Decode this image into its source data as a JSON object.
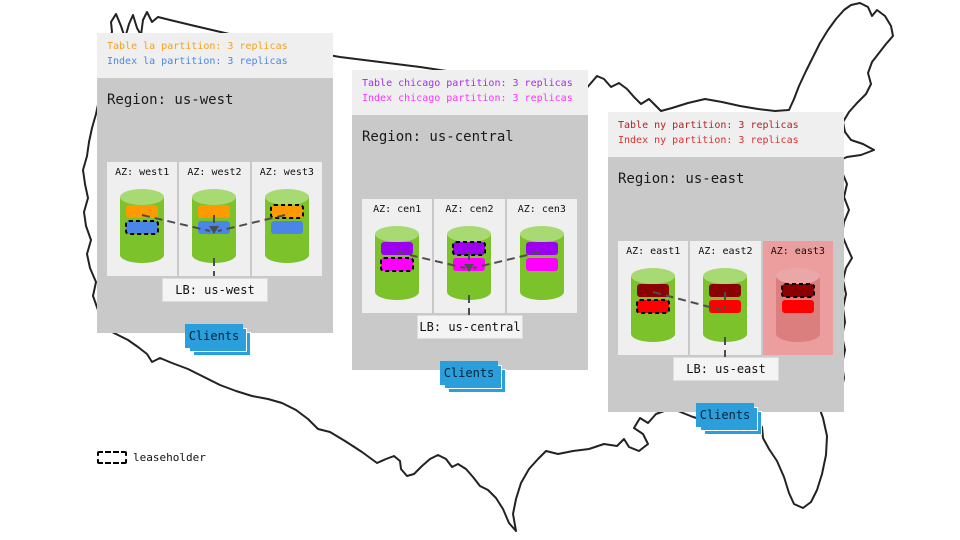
{
  "diagram": {
    "legend": {
      "label": "leaseholder"
    },
    "colors": {
      "cylinder_body": "#7CC22A",
      "cylinder_top": "#A8DA74",
      "cylinder_failed_body": "#DB7E7E",
      "cylinder_failed_top": "#E9A7A7",
      "failed_az_bg": "#EC9D9D",
      "region_bg": "#C9C9C9",
      "panel_bg": "#EFEFEF",
      "clients_blue": "#2B9FDB",
      "connection_line": "#4D4D4D"
    },
    "regions": [
      {
        "name": "us-west",
        "title": "Region: us-west",
        "annotation_line1": "Table la partition: 3 replicas",
        "annotation_color1": "#F5A01E",
        "annotation_line2": "Index la partition: 3 replicas",
        "annotation_color2": "#4A86E8",
        "lb_label": "LB: us-west",
        "clients_label": "Clients",
        "azs": [
          {
            "label": "AZ: west1",
            "failed": false,
            "connected": true,
            "bars": [
              {
                "color": "#FF9900",
                "leaseholder": false
              },
              {
                "color": "#4A86E8",
                "leaseholder": true
              }
            ]
          },
          {
            "label": "AZ: west2",
            "failed": false,
            "connected": true,
            "bars": [
              {
                "color": "#FF9900",
                "leaseholder": false
              },
              {
                "color": "#4A86E8",
                "leaseholder": false
              }
            ]
          },
          {
            "label": "AZ: west3",
            "failed": false,
            "connected": true,
            "bars": [
              {
                "color": "#FF9900",
                "leaseholder": true
              },
              {
                "color": "#4A86E8",
                "leaseholder": false
              }
            ]
          }
        ]
      },
      {
        "name": "us-central",
        "title": "Region: us-central",
        "annotation_line1": "Table chicago partition: 3 replicas",
        "annotation_color1": "#A42CF0",
        "annotation_line2": "Index chicago partition: 3 replicas",
        "annotation_color2": "#FF33FF",
        "lb_label": "LB: us-central",
        "clients_label": "Clients",
        "azs": [
          {
            "label": "AZ: cen1",
            "failed": false,
            "connected": true,
            "bars": [
              {
                "color": "#9D00EE",
                "leaseholder": false
              },
              {
                "color": "#FF00FF",
                "leaseholder": true
              }
            ]
          },
          {
            "label": "AZ: cen2",
            "failed": false,
            "connected": true,
            "bars": [
              {
                "color": "#9D00EE",
                "leaseholder": true
              },
              {
                "color": "#FF00FF",
                "leaseholder": false
              }
            ]
          },
          {
            "label": "AZ: cen3",
            "failed": false,
            "connected": true,
            "bars": [
              {
                "color": "#9D00EE",
                "leaseholder": false
              },
              {
                "color": "#FF00FF",
                "leaseholder": false
              }
            ]
          }
        ]
      },
      {
        "name": "us-east",
        "title": "Region: us-east",
        "annotation_line1": "Table ny partition: 3 replicas",
        "annotation_color1": "#B22222",
        "annotation_line2": "Index ny partition: 3 replicas",
        "annotation_color2": "#DD3030",
        "lb_label": "LB: us-east",
        "clients_label": "Clients",
        "azs": [
          {
            "label": "AZ: east1",
            "failed": false,
            "connected": true,
            "bars": [
              {
                "color": "#8B0000",
                "leaseholder": false
              },
              {
                "color": "#FF0000",
                "leaseholder": true
              }
            ]
          },
          {
            "label": "AZ: east2",
            "failed": false,
            "connected": true,
            "bars": [
              {
                "color": "#8B0000",
                "leaseholder": false
              },
              {
                "color": "#FF0000",
                "leaseholder": false
              }
            ]
          },
          {
            "label": "AZ: east3",
            "failed": true,
            "connected": false,
            "bars": [
              {
                "color": "#8B0000",
                "leaseholder": true
              },
              {
                "color": "#FF0000",
                "leaseholder": false
              }
            ]
          }
        ]
      }
    ]
  }
}
